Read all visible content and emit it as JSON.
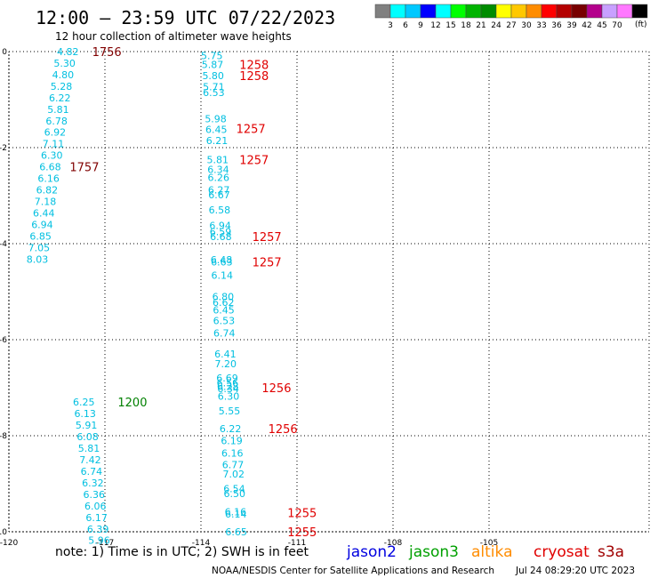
{
  "header": {
    "title": "12:00 — 23:59 UTC 07/22/2023",
    "subtitle": "12 hour collection of altimeter wave heights"
  },
  "colorbar": {
    "colors": [
      "#808080",
      "#00ffff",
      "#00c8ff",
      "#0000ff",
      "#00ffff",
      "#00ff00",
      "#00b400",
      "#008c00",
      "#ffff00",
      "#ffc800",
      "#ff8c00",
      "#ff0000",
      "#b40000",
      "#780000",
      "#b4008c",
      "#c8a0ff",
      "#ff78ff",
      "#000000"
    ],
    "labels": [
      "3",
      "6",
      "9",
      "12",
      "15",
      "18",
      "21",
      "24",
      "27",
      "30",
      "33",
      "36",
      "39",
      "42",
      "45",
      "70"
    ],
    "unit": "(ft)"
  },
  "footer": {
    "note": "note: 1) Time is in UTC; 2) SWH is in feet",
    "credit": "NOAA/NESDIS Center for Satellite Applications and Research",
    "timestamp": "Jul 24 08:29:20 UTC 2023",
    "legend": [
      {
        "label": "jason2",
        "color": "#0000e0"
      },
      {
        "label": "jason3",
        "color": "#00a000"
      },
      {
        "label": "altika",
        "color": "#ff8c00"
      },
      {
        "label": "cryosat",
        "color": "#e00000"
      },
      {
        "label": "s3a",
        "color": "#a00000"
      }
    ]
  },
  "chart_data": {
    "type": "scatter",
    "xlim": [
      -120,
      -100
    ],
    "ylim": [
      -10,
      0
    ],
    "x_ticks": [
      "-120",
      "-117",
      "-114",
      "-111",
      "-108",
      "-105"
    ],
    "y_ticks": [
      "0",
      "-2",
      "-4",
      "-6",
      "-8",
      "-10"
    ],
    "value_color": "#00bfe0",
    "tracks": [
      {
        "time": "1756",
        "color": "#800000",
        "x": -117.4,
        "y": 0.0,
        "points": [
          {
            "x": -118.5,
            "y": 0.0,
            "v": "4.82"
          },
          {
            "x": -118.6,
            "y": -0.24,
            "v": "5.30"
          },
          {
            "x": -118.65,
            "y": -0.48,
            "v": "4.80"
          },
          {
            "x": -118.7,
            "y": -0.72,
            "v": "5.28"
          },
          {
            "x": -118.75,
            "y": -0.96,
            "v": "6.22"
          },
          {
            "x": -118.8,
            "y": -1.2,
            "v": "5.81"
          },
          {
            "x": -118.85,
            "y": -1.44,
            "v": "6.78"
          },
          {
            "x": -118.9,
            "y": -1.68,
            "v": "6.92"
          },
          {
            "x": -118.95,
            "y": -1.92,
            "v": "7.11"
          },
          {
            "x": -119.0,
            "y": -2.16,
            "v": "6.30"
          }
        ]
      },
      {
        "time": "1757",
        "color": "#800000",
        "x": -118.1,
        "y": -2.4,
        "points": [
          {
            "x": -119.05,
            "y": -2.4,
            "v": "6.68"
          },
          {
            "x": -119.1,
            "y": -2.64,
            "v": "6.16"
          },
          {
            "x": -119.15,
            "y": -2.88,
            "v": "6.82"
          },
          {
            "x": -119.2,
            "y": -3.12,
            "v": "7.18"
          },
          {
            "x": -119.25,
            "y": -3.36,
            "v": "6.44"
          },
          {
            "x": -119.3,
            "y": -3.6,
            "v": "6.94"
          },
          {
            "x": -119.35,
            "y": -3.84,
            "v": "6.85"
          },
          {
            "x": -119.4,
            "y": -4.08,
            "v": "7.05"
          },
          {
            "x": -119.45,
            "y": -4.32,
            "v": "8.03"
          }
        ]
      },
      {
        "time": "1258",
        "color": "#e00000",
        "x": -112.8,
        "y": -0.27,
        "points": [
          {
            "x": -114.0,
            "y": -0.08,
            "v": "5.75"
          },
          {
            "x": -113.98,
            "y": -0.27,
            "v": "5.87"
          },
          {
            "x": -113.96,
            "y": -0.5,
            "v": "5.80"
          }
        ]
      },
      {
        "time": "1258",
        "color": "#e00000",
        "x": -112.8,
        "y": -0.5,
        "points": [
          {
            "x": -113.94,
            "y": -0.73,
            "v": "5.71"
          },
          {
            "x": -113.94,
            "y": -0.85,
            "v": "6.53"
          }
        ]
      },
      {
        "time": "1257",
        "color": "#e00000",
        "x": -112.9,
        "y": -1.6,
        "points": [
          {
            "x": -113.88,
            "y": -1.4,
            "v": "5.98"
          },
          {
            "x": -113.86,
            "y": -1.62,
            "v": "6.45"
          },
          {
            "x": -113.84,
            "y": -1.85,
            "v": "6.21"
          }
        ]
      },
      {
        "time": "1257",
        "color": "#e00000",
        "x": -112.8,
        "y": -2.25,
        "points": [
          {
            "x": -113.82,
            "y": -2.25,
            "v": "5.81"
          },
          {
            "x": -113.8,
            "y": -2.45,
            "v": "6.34"
          },
          {
            "x": -113.79,
            "y": -2.62,
            "v": "6.26"
          },
          {
            "x": -113.78,
            "y": -2.88,
            "v": "6.27"
          },
          {
            "x": -113.77,
            "y": -2.98,
            "v": "6.67"
          },
          {
            "x": -113.76,
            "y": -3.3,
            "v": "6.58"
          },
          {
            "x": -113.74,
            "y": -3.62,
            "v": "6.94"
          },
          {
            "x": -113.73,
            "y": -3.75,
            "v": "6.59"
          },
          {
            "x": -113.72,
            "y": -3.85,
            "v": "6.68"
          }
        ]
      },
      {
        "time": "1257",
        "color": "#e00000",
        "x": -112.4,
        "y": -3.85,
        "points": []
      },
      {
        "time": "1257",
        "color": "#e00000",
        "x": -112.4,
        "y": -4.38,
        "points": [
          {
            "x": -113.7,
            "y": -4.33,
            "v": "6.48"
          },
          {
            "x": -113.69,
            "y": -4.38,
            "v": "6.63"
          },
          {
            "x": -113.68,
            "y": -4.66,
            "v": "6.14"
          }
        ]
      },
      {
        "time": "1256",
        "color": "#e00000",
        "x": -112.1,
        "y": -7.0,
        "points": [
          {
            "x": -113.65,
            "y": -5.1,
            "v": "6.80"
          },
          {
            "x": -113.64,
            "y": -5.22,
            "v": "6.62"
          },
          {
            "x": -113.63,
            "y": -5.38,
            "v": "6.45"
          },
          {
            "x": -113.62,
            "y": -5.6,
            "v": "6.53"
          },
          {
            "x": -113.61,
            "y": -5.86,
            "v": "6.74"
          },
          {
            "x": -113.58,
            "y": -6.3,
            "v": "6.41"
          },
          {
            "x": -113.57,
            "y": -6.5,
            "v": "7.20"
          },
          {
            "x": -113.52,
            "y": -6.8,
            "v": "6.69"
          },
          {
            "x": -113.51,
            "y": -6.9,
            "v": "6.56"
          },
          {
            "x": -113.5,
            "y": -6.97,
            "v": "6.28"
          },
          {
            "x": -113.49,
            "y": -7.02,
            "v": "6.34"
          },
          {
            "x": -113.48,
            "y": -7.18,
            "v": "6.30"
          },
          {
            "x": -113.45,
            "y": -7.48,
            "v": "5.55"
          }
        ]
      },
      {
        "time": "1256",
        "color": "#e00000",
        "x": -111.9,
        "y": -7.85,
        "points": [
          {
            "x": -113.42,
            "y": -7.85,
            "v": "6.22"
          },
          {
            "x": -113.38,
            "y": -8.1,
            "v": "6.19"
          },
          {
            "x": -113.36,
            "y": -8.36,
            "v": "6.16"
          },
          {
            "x": -113.34,
            "y": -8.6,
            "v": "6.77"
          },
          {
            "x": -113.32,
            "y": -8.8,
            "v": "7.02"
          },
          {
            "x": -113.3,
            "y": -9.1,
            "v": "6.54"
          },
          {
            "x": -113.29,
            "y": -9.2,
            "v": "6.50"
          }
        ]
      },
      {
        "time": "1255",
        "color": "#e00000",
        "x": -111.3,
        "y": -9.6,
        "points": [
          {
            "x": -113.26,
            "y": -9.58,
            "v": "6.16"
          },
          {
            "x": -113.25,
            "y": -9.63,
            "v": "6.14"
          }
        ]
      },
      {
        "time": "1255",
        "color": "#e00000",
        "x": -111.3,
        "y": -10.0,
        "points": [
          {
            "x": -113.24,
            "y": -10.0,
            "v": "6.65"
          }
        ]
      },
      {
        "time": "1200",
        "color": "#008000",
        "x": -116.6,
        "y": -7.3,
        "points": [
          {
            "x": -118.0,
            "y": -7.3,
            "v": "6.25"
          },
          {
            "x": -117.96,
            "y": -7.54,
            "v": "6.13"
          },
          {
            "x": -117.92,
            "y": -7.78,
            "v": "5.91"
          },
          {
            "x": -117.88,
            "y": -8.02,
            "v": "6.08"
          },
          {
            "x": -117.84,
            "y": -8.26,
            "v": "5.81"
          },
          {
            "x": -117.8,
            "y": -8.5,
            "v": "7.42"
          },
          {
            "x": -117.76,
            "y": -8.74,
            "v": "6.74"
          },
          {
            "x": -117.72,
            "y": -8.98,
            "v": "6.32"
          },
          {
            "x": -117.68,
            "y": -9.22,
            "v": "6.36"
          },
          {
            "x": -117.64,
            "y": -9.46,
            "v": "6.06"
          },
          {
            "x": -117.6,
            "y": -9.7,
            "v": "6.17"
          },
          {
            "x": -117.56,
            "y": -9.94,
            "v": "6.39"
          },
          {
            "x": -117.52,
            "y": -10.18,
            "v": "5.96"
          }
        ]
      }
    ]
  }
}
